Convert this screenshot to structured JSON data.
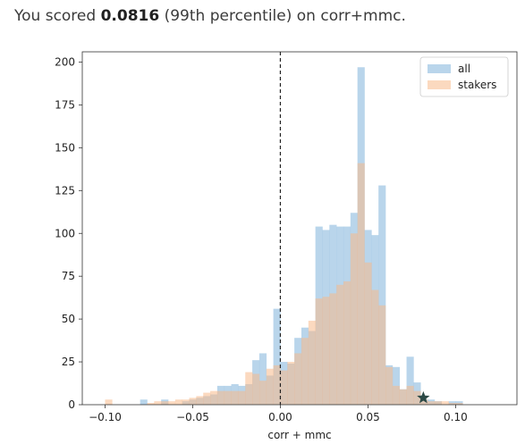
{
  "headline": {
    "prefix": "You scored ",
    "score": "0.0816",
    "suffix": " (99th percentile) on corr+mmc."
  },
  "chart_data": {
    "type": "bar",
    "xlabel": "corr + mmc",
    "ylabel": "",
    "xlim": [
      -0.113,
      0.135
    ],
    "ylim": [
      0,
      206
    ],
    "bin_start": -0.1,
    "bin_width": 0.004,
    "x_ticks": [
      -0.1,
      -0.05,
      0.0,
      0.05,
      0.1
    ],
    "x_tick_labels": [
      "−0.10",
      "−0.05",
      "0.00",
      "0.05",
      "0.10"
    ],
    "y_ticks": [
      0,
      25,
      50,
      75,
      100,
      125,
      150,
      175,
      200
    ],
    "y_tick_labels": [
      "0",
      "25",
      "50",
      "75",
      "100",
      "125",
      "150",
      "175",
      "200"
    ],
    "vline_x": 0.0,
    "score_marker": {
      "x": 0.0816,
      "y": 4
    },
    "legend_position": "upper-right",
    "colors": {
      "all": "#9ec5e3",
      "stakers": "#f7b98a",
      "marker": "#2c4a46",
      "vline": "#222222"
    },
    "series": [
      {
        "name": "all",
        "values": [
          0,
          0,
          0,
          0,
          0,
          3,
          0,
          0,
          3,
          0,
          0,
          2,
          3,
          4,
          5,
          6,
          11,
          11,
          12,
          11,
          12,
          26,
          30,
          17,
          56,
          25,
          24,
          39,
          45,
          43,
          104,
          102,
          105,
          104,
          104,
          112,
          197,
          102,
          99,
          128,
          23,
          22,
          9,
          28,
          13,
          3,
          3,
          2,
          0,
          2,
          2
        ]
      },
      {
        "name": "stakers",
        "values": [
          3,
          0,
          0,
          0,
          0,
          0,
          1,
          2,
          2,
          2,
          3,
          3,
          4,
          5,
          7,
          8,
          8,
          8,
          8,
          8,
          19,
          18,
          14,
          21,
          23,
          20,
          25,
          30,
          39,
          49,
          62,
          63,
          65,
          70,
          72,
          100,
          141,
          83,
          67,
          58,
          22,
          11,
          9,
          11,
          8,
          3,
          2,
          2,
          2,
          1,
          1
        ]
      }
    ]
  }
}
